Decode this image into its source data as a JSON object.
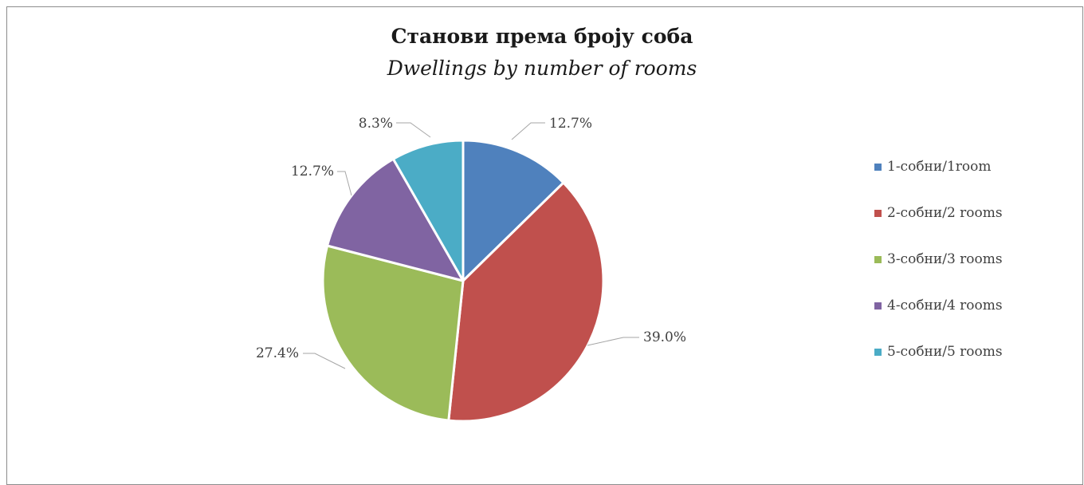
{
  "chart_data": {
    "type": "pie",
    "title": "Станови према броју соба",
    "subtitle": "Dwellings by number of rooms",
    "legend_position": "right",
    "slices": [
      {
        "label": "1-собни/1room",
        "value": 12.7,
        "display": "12.7%",
        "color": "#4f81bd"
      },
      {
        "label": "2-собни/2 rooms",
        "value": 39.0,
        "display": "39.0%",
        "color": "#c0504d"
      },
      {
        "label": "3-собни/3 rooms",
        "value": 27.4,
        "display": "27.4%",
        "color": "#9bbb59"
      },
      {
        "label": "4-собни/4 rooms",
        "value": 12.7,
        "display": "12.7%",
        "color": "#8064a2"
      },
      {
        "label": "5-собни/5 rooms",
        "value": 8.3,
        "display": "8.3%",
        "color": "#4bacc6"
      }
    ]
  }
}
